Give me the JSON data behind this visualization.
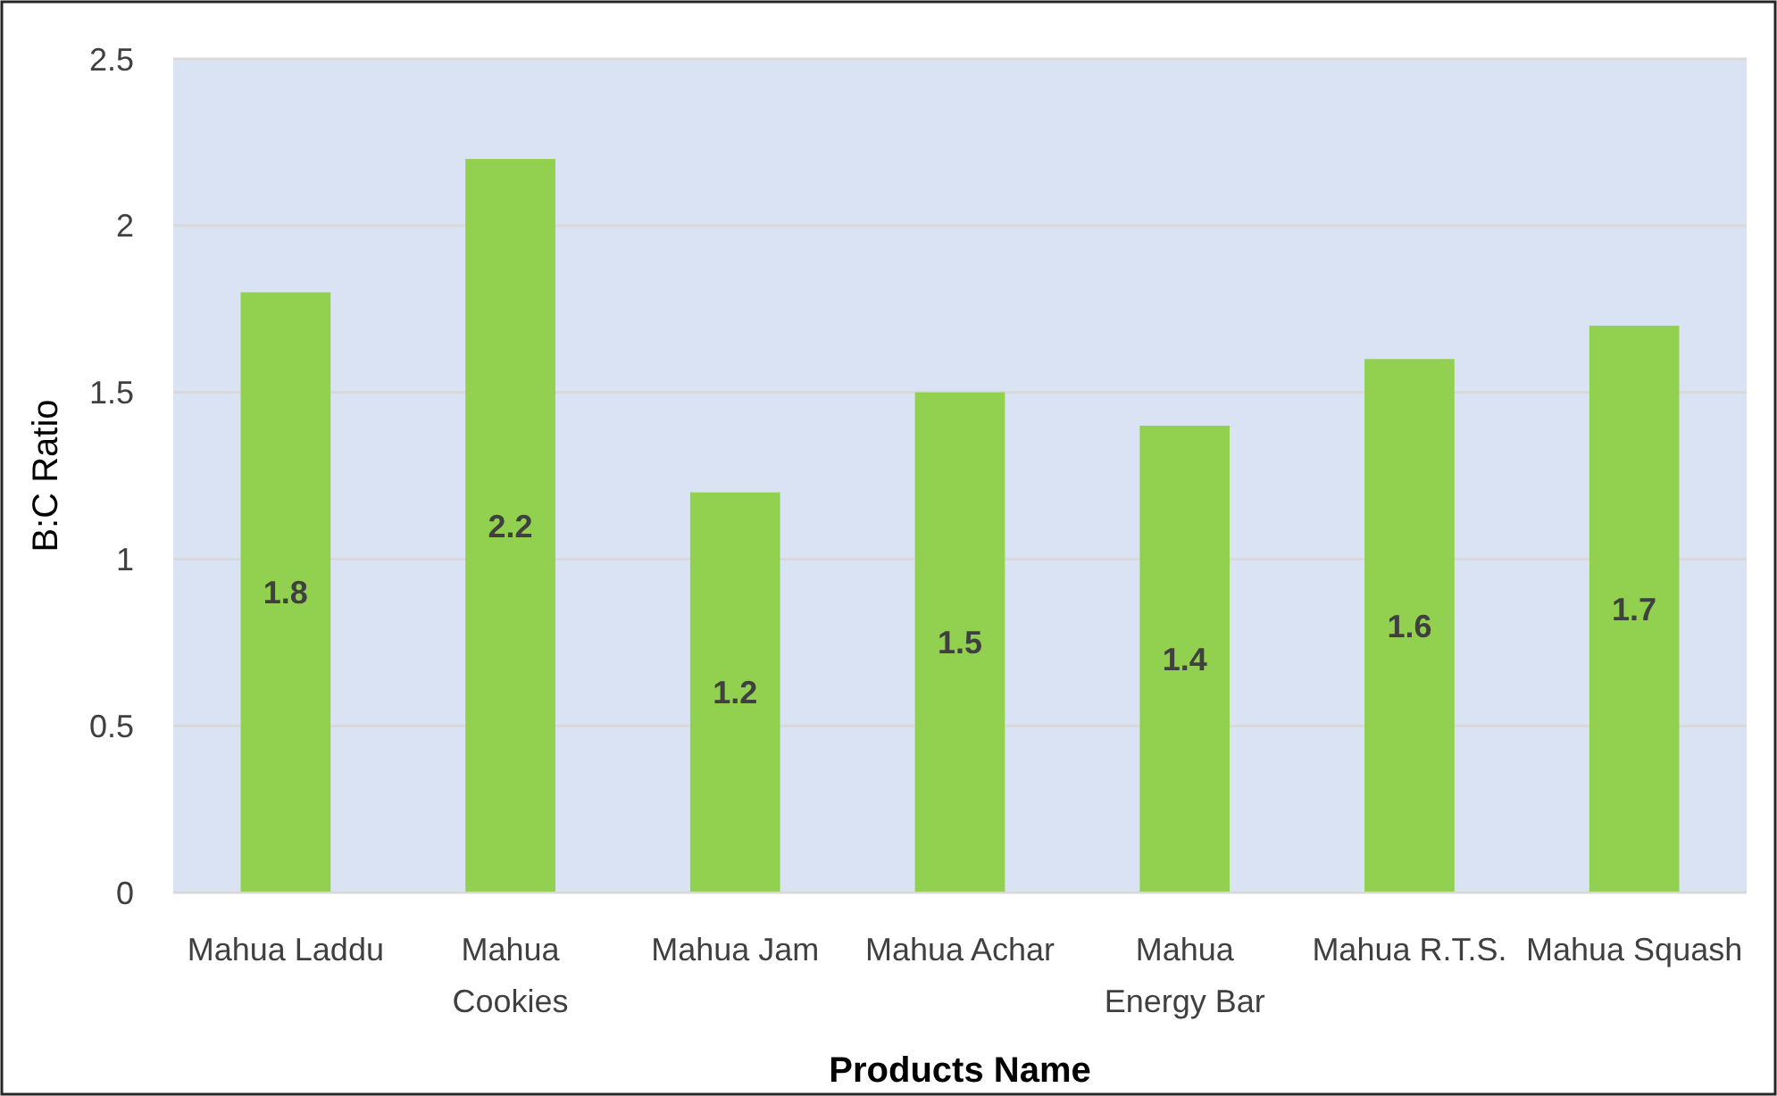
{
  "chart_data": {
    "type": "bar",
    "xlabel": "Products Name",
    "ylabel": "B:C Ratio",
    "categories": [
      "Mahua Laddu",
      "Mahua Cookies",
      "Mahua Jam",
      "Mahua Achar",
      "Mahua Energy Bar",
      "Mahua R.T.S.",
      "Mahua Squash"
    ],
    "values": [
      1.8,
      2.2,
      1.2,
      1.5,
      1.4,
      1.6,
      1.7
    ],
    "color": "#92d050",
    "ylim": [
      0,
      2.5
    ],
    "yticks": [
      0,
      0.5,
      1,
      1.5,
      2,
      2.5
    ],
    "grid": "y",
    "data_labels": true
  }
}
